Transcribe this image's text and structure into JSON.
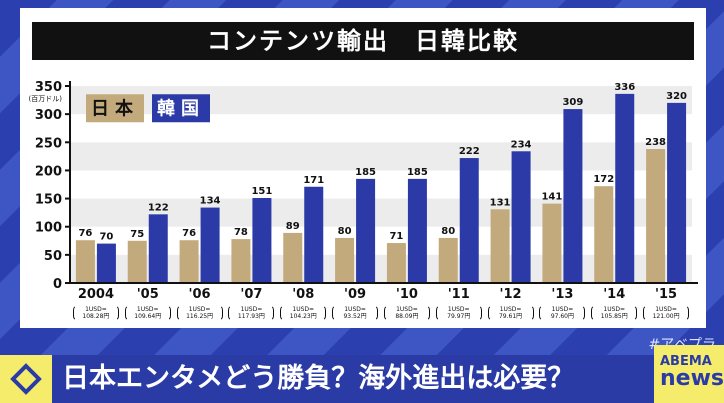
{
  "chart_data": {
    "type": "bar",
    "title": "コンテンツ輸出　日韓比較",
    "ylabel": "(百万ドル)",
    "ylim": [
      0,
      350
    ],
    "yticks": [
      0,
      50,
      100,
      150,
      200,
      250,
      300,
      350
    ],
    "grid": "horizontal bands",
    "legend_placement": "top-left",
    "categories": [
      "2004",
      "'05",
      "'06",
      "'07",
      "'08",
      "'09",
      "'10",
      "'11",
      "'12",
      "'13",
      "'14",
      "'15"
    ],
    "exchange_rates": [
      "1USD=\n108.28円",
      "1USD=\n109.64円",
      "1USD=\n116.25円",
      "1USD=\n117.93円",
      "1USD=\n104.23円",
      "1USD=\n93.52円",
      "1USD=\n88.09円",
      "1USD=\n79.97円",
      "1USD=\n79.61円",
      "1USD=\n97.60円",
      "1USD=\n105.85円",
      "1USD=\n121.00円"
    ],
    "series": [
      {
        "name": "日本",
        "color": "#c3aa7c",
        "values": [
          76,
          75,
          76,
          78,
          89,
          80,
          71,
          80,
          131,
          141,
          172,
          238
        ]
      },
      {
        "name": "韓国",
        "color": "#2b3aa6",
        "values": [
          70,
          122,
          134,
          151,
          171,
          185,
          185,
          222,
          234,
          309,
          336,
          320
        ]
      }
    ]
  },
  "hashtag": "#アベプラ",
  "headline": "日本エンタメどう勝負？海外進出は必要？",
  "logo": {
    "line1": "ABEMA",
    "line2": "news/"
  }
}
